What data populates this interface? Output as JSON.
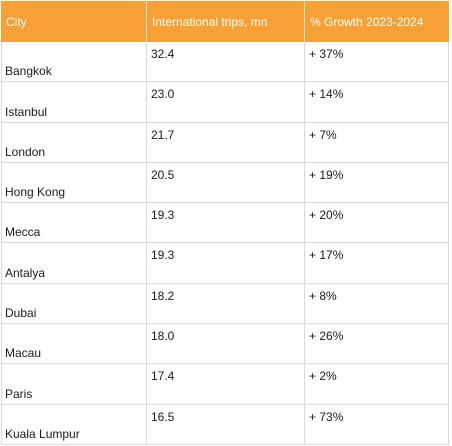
{
  "table": {
    "headers": [
      "City",
      "International trips, mn",
      "% Growth 2023-2024"
    ],
    "rows": [
      {
        "city": "Bangkok",
        "trips": "32.4",
        "growth": "+ 37%"
      },
      {
        "city": "Istanbul",
        "trips": "23.0",
        "growth": "+ 14%"
      },
      {
        "city": "London",
        "trips": "21.7",
        "growth": "+ 7%"
      },
      {
        "city": "Hong Kong",
        "trips": "20.5",
        "growth": "+ 19%"
      },
      {
        "city": "Mecca",
        "trips": "19.3",
        "growth": "+ 20%"
      },
      {
        "city": "Antalya",
        "trips": "19.3",
        "growth": "+ 17%"
      },
      {
        "city": "Dubai",
        "trips": "18.2",
        "growth": "+ 8%"
      },
      {
        "city": "Macau",
        "trips": "18.0",
        "growth": "+ 26%"
      },
      {
        "city": "Paris",
        "trips": "17.4",
        "growth": "+ 2%"
      },
      {
        "city": "Kuala Lumpur",
        "trips": "16.5",
        "growth": "+ 73%"
      }
    ]
  },
  "colors": {
    "header_bg": "#f7a035",
    "header_text": "#ffffff",
    "grid": "#d9d9d9"
  }
}
